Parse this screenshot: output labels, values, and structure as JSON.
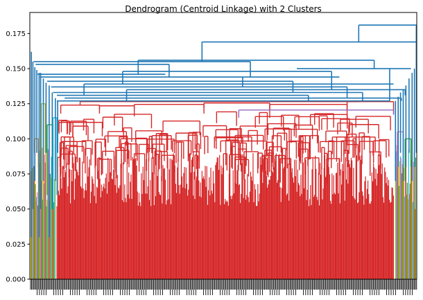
{
  "chart_data": {
    "type": "dendrogram",
    "title": "Dendrogram (Centroid Linkage) with 2 Clusters",
    "xlabel": "",
    "ylabel": "",
    "ylim": [
      0,
      0.19
    ],
    "yticks": [
      0.0,
      0.025,
      0.05,
      0.075,
      0.1,
      0.125,
      0.15,
      0.175
    ],
    "ytick_labels": [
      "0.000",
      "0.025",
      "0.050",
      "0.075",
      "0.100",
      "0.125",
      "0.150",
      "0.175"
    ],
    "grid": false,
    "legend": "none",
    "leaf_labels": "dense, overlapping (illegible)",
    "colors": {
      "above_threshold": "#1f77b4",
      "cluster_main": "#d62728",
      "cluster_orange": "#ff7f0e",
      "cluster_green": "#2ca02c",
      "cluster_purple": "#9467bd",
      "cluster_brown": "#8c564b",
      "cluster_pink": "#e377c2",
      "cluster_olive": "#bcbd22",
      "cluster_cyan": "#17becf"
    },
    "top_merges": [
      {
        "height": 0.181,
        "color": "above_threshold"
      },
      {
        "height": 0.169,
        "color": "above_threshold"
      },
      {
        "height": 0.155,
        "color": "above_threshold"
      },
      {
        "height": 0.15,
        "color": "above_threshold"
      },
      {
        "height": 0.145,
        "color": "above_threshold"
      },
      {
        "height": 0.139,
        "color": "above_threshold"
      },
      {
        "height": 0.135,
        "color": "above_threshold"
      },
      {
        "height": 0.131,
        "color": "above_threshold"
      },
      {
        "height": 0.127,
        "color": "above_threshold"
      },
      {
        "height": 0.126,
        "color": "cluster_main"
      },
      {
        "height": 0.12,
        "color": "cluster_purple"
      }
    ],
    "cluster_main_range": {
      "leaf_fraction": [
        0.07,
        0.94
      ],
      "max_height": 0.126,
      "dense_band_max": 0.09
    }
  }
}
